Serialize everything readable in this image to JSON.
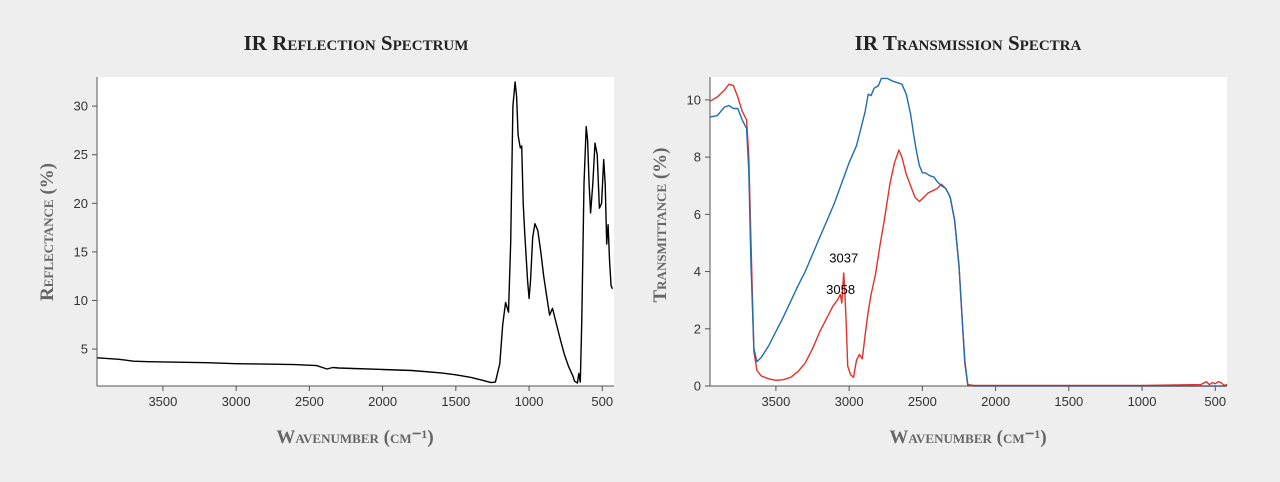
{
  "chart_data": [
    {
      "type": "line",
      "title": "IR Reflection Spectrum",
      "xlabel": "Wavenumber (cm⁻¹)",
      "ylabel": "Reflectance (%)",
      "xlim": [
        3950,
        420
      ],
      "ylim": [
        1.2,
        33
      ],
      "x_reversed": true,
      "grid": false,
      "xticks": [
        3500,
        3000,
        2500,
        2000,
        1500,
        1000,
        500
      ],
      "yticks": [
        5,
        10,
        15,
        20,
        25,
        30
      ],
      "series": [
        {
          "color": "#000000",
          "points": [
            [
              3950,
              4.1
            ],
            [
              3800,
              3.95
            ],
            [
              3700,
              3.75
            ],
            [
              3600,
              3.7
            ],
            [
              3400,
              3.65
            ],
            [
              3200,
              3.6
            ],
            [
              3000,
              3.5
            ],
            [
              2800,
              3.45
            ],
            [
              2600,
              3.4
            ],
            [
              2450,
              3.3
            ],
            [
              2380,
              2.95
            ],
            [
              2340,
              3.1
            ],
            [
              2300,
              3.05
            ],
            [
              2200,
              3.0
            ],
            [
              2000,
              2.9
            ],
            [
              1800,
              2.8
            ],
            [
              1600,
              2.55
            ],
            [
              1500,
              2.35
            ],
            [
              1400,
              2.1
            ],
            [
              1320,
              1.8
            ],
            [
              1260,
              1.55
            ],
            [
              1230,
              1.6
            ],
            [
              1200,
              3.5
            ],
            [
              1180,
              7.5
            ],
            [
              1160,
              9.8
            ],
            [
              1140,
              8.8
            ],
            [
              1125,
              16
            ],
            [
              1110,
              30
            ],
            [
              1095,
              32.5
            ],
            [
              1085,
              31
            ],
            [
              1075,
              27
            ],
            [
              1060,
              25.7
            ],
            [
              1050,
              25.9
            ],
            [
              1040,
              20
            ],
            [
              1030,
              17
            ],
            [
              1010,
              12
            ],
            [
              1000,
              10.2
            ],
            [
              990,
              12
            ],
            [
              975,
              16.5
            ],
            [
              960,
              17.9
            ],
            [
              940,
              17.2
            ],
            [
              920,
              15
            ],
            [
              900,
              12.5
            ],
            [
              880,
              10.5
            ],
            [
              860,
              8.5
            ],
            [
              840,
              9.2
            ],
            [
              820,
              8.0
            ],
            [
              790,
              6.2
            ],
            [
              760,
              4.5
            ],
            [
              730,
              3.2
            ],
            [
              700,
              2.2
            ],
            [
              690,
              1.7
            ],
            [
              670,
              1.5
            ],
            [
              660,
              2.5
            ],
            [
              650,
              1.6
            ],
            [
              640,
              8
            ],
            [
              625,
              22
            ],
            [
              610,
              27.9
            ],
            [
              600,
              26.5
            ],
            [
              590,
              22
            ],
            [
              580,
              19
            ],
            [
              565,
              22
            ],
            [
              550,
              26.2
            ],
            [
              535,
              25
            ],
            [
              520,
              19.5
            ],
            [
              505,
              20
            ],
            [
              490,
              24.5
            ],
            [
              480,
              22
            ],
            [
              470,
              15.8
            ],
            [
              460,
              17.8
            ],
            [
              450,
              14
            ],
            [
              440,
              11.5
            ],
            [
              430,
              11.2
            ]
          ]
        }
      ]
    },
    {
      "type": "line",
      "title": "IR Transmission Spectra",
      "xlabel": "Wavenumber (cm⁻¹)",
      "ylabel": "Transmittance (%)",
      "xlim": [
        3950,
        420
      ],
      "ylim": [
        0,
        10.8
      ],
      "x_reversed": true,
      "grid": false,
      "xticks": [
        3500,
        3000,
        2500,
        2000,
        1500,
        1000,
        500
      ],
      "yticks": [
        0,
        2,
        4,
        6,
        8,
        10
      ],
      "annotations": [
        {
          "text": "3058",
          "x": 3058,
          "y": 3.0
        },
        {
          "text": "3037",
          "x": 3037,
          "y": 4.1
        }
      ],
      "series": [
        {
          "color": "#e0322b",
          "points": [
            [
              3950,
              9.95
            ],
            [
              3900,
              10.1
            ],
            [
              3850,
              10.35
            ],
            [
              3820,
              10.55
            ],
            [
              3790,
              10.5
            ],
            [
              3760,
              10.1
            ],
            [
              3730,
              9.6
            ],
            [
              3700,
              9.3
            ],
            [
              3685,
              8.0
            ],
            [
              3670,
              5.0
            ],
            [
              3650,
              1.2
            ],
            [
              3630,
              0.55
            ],
            [
              3600,
              0.35
            ],
            [
              3550,
              0.25
            ],
            [
              3500,
              0.2
            ],
            [
              3450,
              0.22
            ],
            [
              3400,
              0.3
            ],
            [
              3350,
              0.5
            ],
            [
              3300,
              0.8
            ],
            [
              3250,
              1.3
            ],
            [
              3200,
              1.9
            ],
            [
              3150,
              2.4
            ],
            [
              3110,
              2.8
            ],
            [
              3080,
              3.0
            ],
            [
              3060,
              3.2
            ],
            [
              3050,
              2.9
            ],
            [
              3045,
              3.3
            ],
            [
              3037,
              3.95
            ],
            [
              3030,
              3.4
            ],
            [
              3020,
              2.2
            ],
            [
              3010,
              0.7
            ],
            [
              2990,
              0.4
            ],
            [
              2970,
              0.3
            ],
            [
              2950,
              0.9
            ],
            [
              2930,
              1.1
            ],
            [
              2910,
              0.95
            ],
            [
              2890,
              1.8
            ],
            [
              2870,
              2.6
            ],
            [
              2850,
              3.2
            ],
            [
              2820,
              3.9
            ],
            [
              2790,
              4.9
            ],
            [
              2760,
              5.8
            ],
            [
              2720,
              7.1
            ],
            [
              2690,
              7.8
            ],
            [
              2660,
              8.25
            ],
            [
              2640,
              8.0
            ],
            [
              2610,
              7.4
            ],
            [
              2580,
              7.0
            ],
            [
              2550,
              6.6
            ],
            [
              2520,
              6.45
            ],
            [
              2490,
              6.6
            ],
            [
              2460,
              6.75
            ],
            [
              2440,
              6.8
            ],
            [
              2400,
              6.9
            ],
            [
              2370,
              7.05
            ],
            [
              2340,
              6.9
            ],
            [
              2310,
              6.6
            ],
            [
              2280,
              5.8
            ],
            [
              2250,
              4.2
            ],
            [
              2230,
              2.5
            ],
            [
              2210,
              0.8
            ],
            [
              2190,
              0.05
            ],
            [
              2150,
              0.02
            ],
            [
              2000,
              0.02
            ],
            [
              1500,
              0.02
            ],
            [
              1000,
              0.02
            ],
            [
              600,
              0.05
            ],
            [
              560,
              0.15
            ],
            [
              540,
              0.05
            ],
            [
              520,
              0.12
            ],
            [
              500,
              0.08
            ],
            [
              480,
              0.15
            ],
            [
              460,
              0.12
            ],
            [
              440,
              0.02
            ],
            [
              420,
              0.05
            ]
          ]
        },
        {
          "color": "#1f6db0",
          "points": [
            [
              3950,
              9.4
            ],
            [
              3900,
              9.45
            ],
            [
              3850,
              9.75
            ],
            [
              3820,
              9.8
            ],
            [
              3790,
              9.7
            ],
            [
              3760,
              9.7
            ],
            [
              3730,
              9.3
            ],
            [
              3700,
              9.0
            ],
            [
              3685,
              7.5
            ],
            [
              3670,
              4.2
            ],
            [
              3650,
              1.3
            ],
            [
              3630,
              0.85
            ],
            [
              3600,
              1.0
            ],
            [
              3550,
              1.4
            ],
            [
              3500,
              1.9
            ],
            [
              3450,
              2.4
            ],
            [
              3400,
              2.95
            ],
            [
              3350,
              3.5
            ],
            [
              3300,
              4.0
            ],
            [
              3250,
              4.6
            ],
            [
              3200,
              5.2
            ],
            [
              3150,
              5.8
            ],
            [
              3100,
              6.4
            ],
            [
              3050,
              7.1
            ],
            [
              3000,
              7.8
            ],
            [
              2950,
              8.4
            ],
            [
              2920,
              9.0
            ],
            [
              2890,
              9.6
            ],
            [
              2870,
              10.2
            ],
            [
              2850,
              10.15
            ],
            [
              2830,
              10.4
            ],
            [
              2800,
              10.5
            ],
            [
              2780,
              10.75
            ],
            [
              2740,
              10.75
            ],
            [
              2700,
              10.65
            ],
            [
              2670,
              10.6
            ],
            [
              2640,
              10.55
            ],
            [
              2610,
              10.2
            ],
            [
              2580,
              9.5
            ],
            [
              2560,
              8.8
            ],
            [
              2540,
              8.2
            ],
            [
              2520,
              7.7
            ],
            [
              2500,
              7.45
            ],
            [
              2480,
              7.45
            ],
            [
              2450,
              7.35
            ],
            [
              2420,
              7.3
            ],
            [
              2400,
              7.15
            ],
            [
              2370,
              7.0
            ],
            [
              2340,
              6.9
            ],
            [
              2310,
              6.6
            ],
            [
              2280,
              5.8
            ],
            [
              2250,
              4.2
            ],
            [
              2230,
              2.5
            ],
            [
              2210,
              0.9
            ],
            [
              2190,
              0.02
            ],
            [
              2150,
              0.0
            ],
            [
              2000,
              0.0
            ],
            [
              1500,
              0.0
            ],
            [
              1000,
              0.0
            ],
            [
              500,
              0.0
            ],
            [
              420,
              0.0
            ]
          ]
        }
      ]
    }
  ]
}
